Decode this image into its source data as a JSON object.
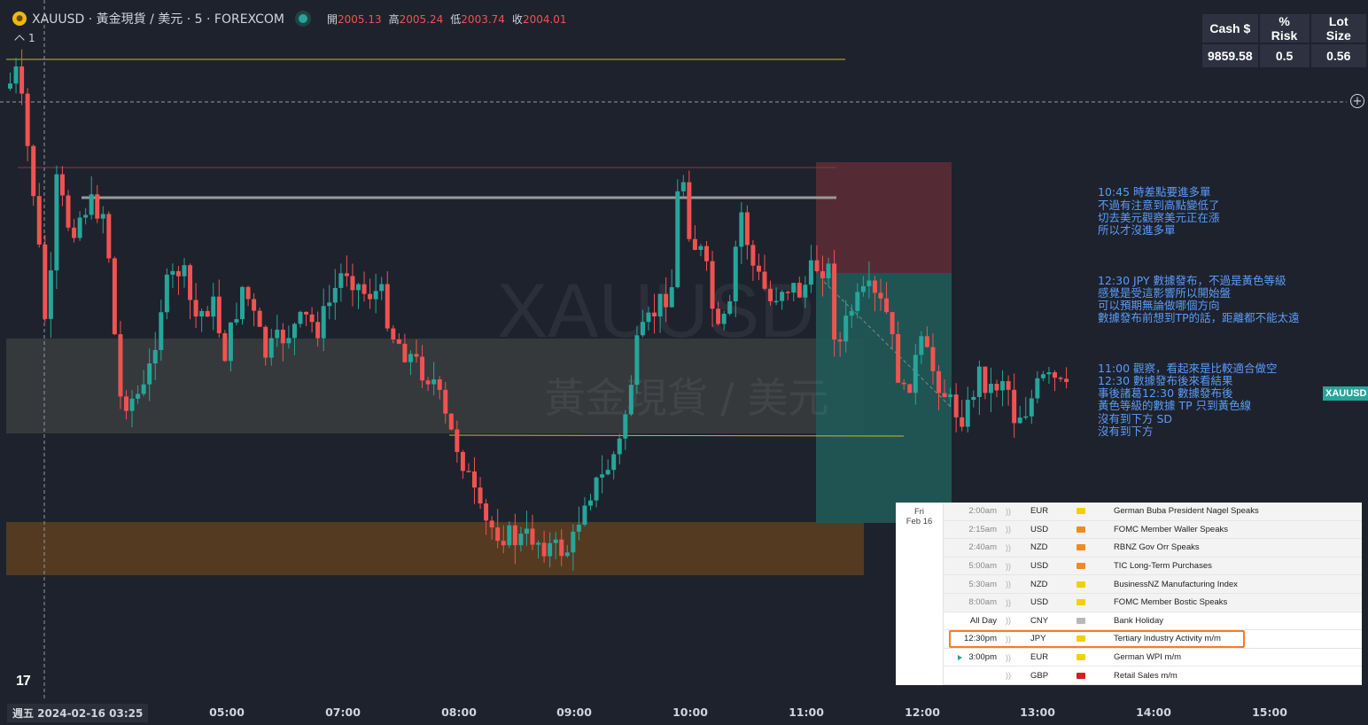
{
  "header": {
    "symbol_line": "XAUUSD · 黃金現貨 / 美元 · 5 · FOREXCOM",
    "symbol_icon": "gold-coin-icon",
    "ohlc": [
      {
        "key": "開",
        "value": "2005.13"
      },
      {
        "key": "高",
        "value": "2005.24"
      },
      {
        "key": "低",
        "value": "2003.74"
      },
      {
        "key": "收",
        "value": "2004.01"
      }
    ],
    "indicator_count": "1"
  },
  "risk_table": {
    "headers": [
      "Cash $",
      "% Risk",
      "Lot Size"
    ],
    "values": [
      "9859.58",
      "0.5",
      "0.56"
    ]
  },
  "watermark": {
    "line1": "XAUUSD",
    "line2": "黃金現貨 / 美元"
  },
  "notes": [
    "10:45 時差點要進多單\n不過有注意到高點變低了\n切去美元觀察美元正在漲\n所以才沒進多單",
    "12:30 JPY 數據發布，不過是黃色等級\n感覺是受這影響所以開始盤\n可以預期無論做哪個方向\n數據發布前想到TP的話，距離都不能太遠",
    "11:00 觀察，看起來是比較適合做空\n12:30 數據發布後來看結果\n事後諸葛12:30 數據發布後\n黃色等級的數據 TP 只到黃色線\n沒有到下方 SD\n沒有到下方"
  ],
  "price_tag": "XAUUSD",
  "time_axis": {
    "cursor_label": "週五 2024-02-16   03:25",
    "labels": [
      "05:00",
      "07:00",
      "08:00",
      "09:00",
      "10:00",
      "11:00",
      "12:00",
      "13:00",
      "14:00",
      "15:00"
    ]
  },
  "calendar": {
    "date_line1": "Fri",
    "date_line2": "Feb 16",
    "rows": [
      {
        "time": "2:00am",
        "currency": "EUR",
        "impact": "yellow",
        "event": "German Buba President Nagel Speaks",
        "state": "past"
      },
      {
        "time": "2:15am",
        "currency": "USD",
        "impact": "orange",
        "event": "FOMC Member Waller Speaks",
        "state": "past"
      },
      {
        "time": "2:40am",
        "currency": "NZD",
        "impact": "orange",
        "event": "RBNZ Gov Orr Speaks",
        "state": "past"
      },
      {
        "time": "5:00am",
        "currency": "USD",
        "impact": "orange",
        "event": "TIC Long-Term Purchases",
        "state": "past"
      },
      {
        "time": "5:30am",
        "currency": "NZD",
        "impact": "yellow",
        "event": "BusinessNZ Manufacturing Index",
        "state": "past"
      },
      {
        "time": "8:00am",
        "currency": "USD",
        "impact": "yellow",
        "event": "FOMC Member Bostic Speaks",
        "state": "past"
      },
      {
        "time": "All Day",
        "currency": "CNY",
        "impact": "gray",
        "event": "Bank Holiday",
        "state": "upcoming"
      },
      {
        "time": "12:30pm",
        "currency": "JPY",
        "impact": "yellow",
        "event": "Tertiary Industry Activity m/m",
        "state": "upcoming"
      },
      {
        "time": "3:00pm",
        "currency": "EUR",
        "impact": "yellow",
        "event": "German WPI m/m",
        "state": "upcoming"
      },
      {
        "time": "",
        "currency": "GBP",
        "impact": "red",
        "event": "Retail Sales m/m",
        "state": "upcoming"
      }
    ]
  },
  "colors": {
    "up": "#26a69a",
    "down": "#ef5350",
    "background": "#1e222d",
    "note_text": "#5b9cf6",
    "impact_yellow": "#f5d000",
    "impact_orange": "#f08a24",
    "impact_red": "#d32020",
    "impact_gray": "#b8b8b8"
  }
}
